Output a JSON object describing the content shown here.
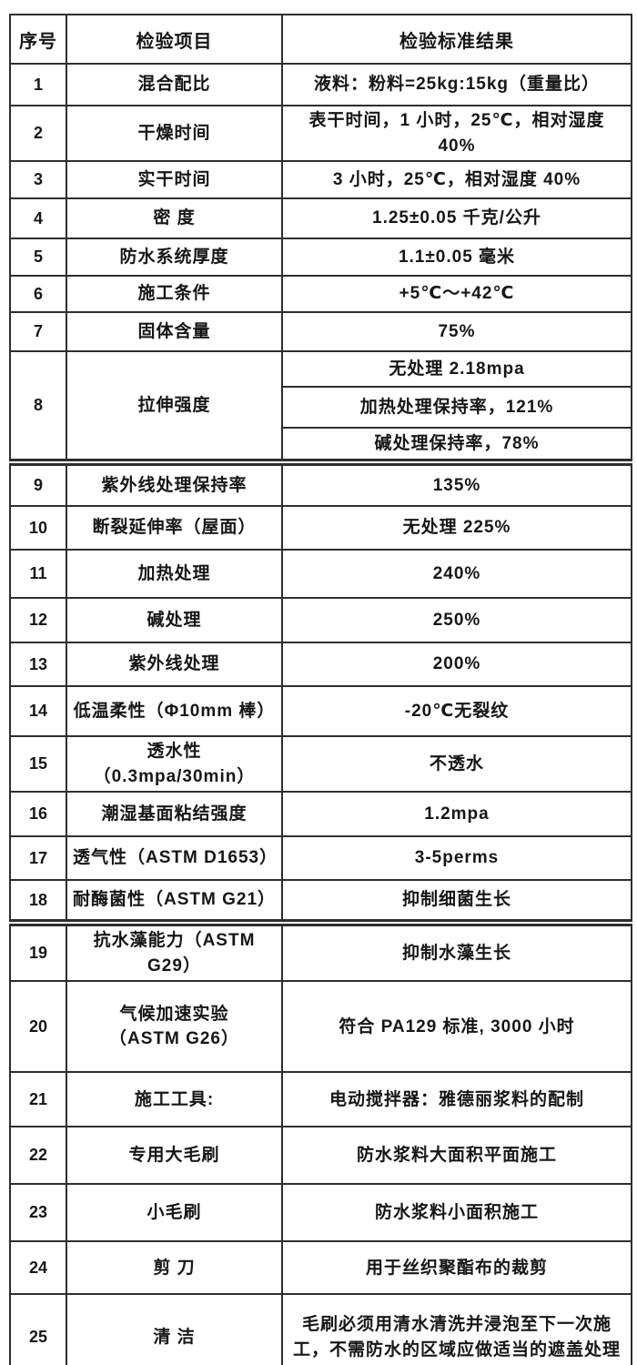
{
  "table": {
    "headers": [
      "序号",
      "检验项目",
      "检验标准结果"
    ],
    "rows": [
      {
        "num": "1",
        "item": "混合配比",
        "result": "液料：粉料=25kg:15kg（重量比）"
      },
      {
        "num": "2",
        "item": "干燥时间",
        "result": "表干时间，1 小时，25℃，相对湿度 40%"
      },
      {
        "num": "3",
        "item": "实干时间",
        "result": "3 小时，25℃，相对湿度 40%"
      },
      {
        "num": "4",
        "item": "密 度",
        "result": "1.25±0.05 千克/公升"
      },
      {
        "num": "5",
        "item": "防水系统厚度",
        "result": "1.1±0.05 毫米"
      },
      {
        "num": "6",
        "item": "施工条件",
        "result": "+5℃～+42℃"
      },
      {
        "num": "7",
        "item": "固体含量",
        "result": "75%"
      },
      {
        "num": "8",
        "item": "拉伸强度",
        "results": [
          "无处理  2.18mpa",
          "加热处理保持率，121%",
          "碱处理保持率，78%"
        ]
      },
      {
        "num": "9",
        "item": "紫外线处理保持率",
        "result": "135%",
        "thick_border_before": true
      },
      {
        "num": "10",
        "item": "断裂延伸率（屋面）",
        "result": "无处理 225%"
      },
      {
        "num": "11",
        "item": "加热处理",
        "result": "240%"
      },
      {
        "num": "12",
        "item": "碱处理",
        "result": "250%"
      },
      {
        "num": "13",
        "item": "紫外线处理",
        "result": "200%"
      },
      {
        "num": "14",
        "item": "低温柔性（Φ10mm 棒）",
        "result": "-20℃无裂纹"
      },
      {
        "num": "15",
        "item": "透水性（0.3mpa/30min）",
        "result": "不透水"
      },
      {
        "num": "16",
        "item": "潮湿基面粘结强度",
        "result": "1.2mpa"
      },
      {
        "num": "17",
        "item": "透气性（ASTM D1653）",
        "result": "3-5perms"
      },
      {
        "num": "18",
        "item": "耐酶菌性（ASTM G21）",
        "result": "抑制细菌生长"
      },
      {
        "num": "19",
        "item": "抗水藻能力（ASTM G29）",
        "result": "抑制水藻生长",
        "thick_border_before": true
      },
      {
        "num": "20",
        "item": "气候加速实验\n（ASTM G26）",
        "result": "符合 PA129 标准, 3000 小时"
      },
      {
        "num": "21",
        "item": "施工工具:",
        "result": "电动搅拌器：雅德丽浆料的配制"
      },
      {
        "num": "22",
        "item": "专用大毛刷",
        "result": "防水浆料大面积平面施工"
      },
      {
        "num": "23",
        "item": "小毛刷",
        "result": "防水浆料小面积施工"
      },
      {
        "num": "24",
        "item": "剪 刀",
        "result": "用于丝织聚酯布的裁剪"
      },
      {
        "num": "25",
        "item": "清 洁",
        "result": "毛刷必须用清水清洗并浸泡至下一次施工，不需防水的区域应做适当的遮盖处理"
      }
    ]
  },
  "colors": {
    "border": "#2e2e2e",
    "text": "#161616",
    "background": "#ffffff"
  }
}
